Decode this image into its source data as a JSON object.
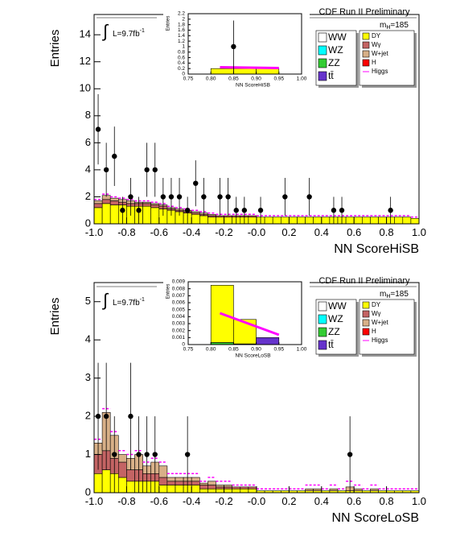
{
  "chart_data": [
    {
      "type": "stacked_histogram",
      "header": "CDF Run II Preliminary",
      "integral_symbol": "∫",
      "lumi": "L=9.7fb",
      "lumi_exponent": "-1",
      "mass_label": {
        "m": "m",
        "sub": "H",
        "rest": "=185"
      },
      "y_label": "Entries",
      "x_label": "NN ScoreHiSB",
      "xlim": [
        -1,
        1
      ],
      "ylim": [
        0,
        15.5
      ],
      "xticks": [
        {
          "value": -1,
          "label": "-1.0"
        },
        -0.8,
        -0.6,
        -0.4,
        -0.2,
        {
          "value": 0,
          "label": "-0.0"
        },
        0.2,
        0.4,
        0.6,
        0.8,
        {
          "value": 1,
          "label": "1.0"
        }
      ],
      "yticks": [
        0,
        2,
        4,
        6,
        8,
        10,
        12,
        14
      ],
      "bins": [
        -1,
        -0.95,
        -0.9,
        -0.85,
        -0.8,
        -0.75,
        -0.7,
        -0.65,
        -0.6,
        -0.55,
        -0.5,
        -0.45,
        -0.4,
        -0.35,
        -0.3,
        -0.25,
        -0.2,
        -0.15,
        -0.1,
        -0.05,
        0,
        0.05,
        0.1,
        0.15,
        0.2,
        0.25,
        0.3,
        0.35,
        0.4,
        0.45,
        0.5,
        0.55,
        0.6,
        0.65,
        0.7,
        0.75,
        0.8,
        0.85,
        0.9,
        0.95,
        1
      ],
      "series": [
        {
          "name": "DY",
          "color": "#ffff00",
          "values": [
            1.2,
            1.5,
            1.4,
            1.4,
            1.3,
            1.3,
            1.3,
            1.2,
            1.1,
            1.0,
            0.9,
            0.8,
            0.7,
            0.6,
            0.5,
            0.5,
            0.5,
            0.5,
            0.5,
            0.5,
            0.5,
            0.5,
            0.5,
            0.5,
            0.5,
            0.5,
            0.5,
            0.5,
            0.5,
            0.5,
            0.5,
            0.5,
            0.5,
            0.5,
            0.5,
            0.5,
            0.5,
            0.5,
            0.5,
            0.4
          ]
        },
        {
          "name": "Wγ",
          "color": "#c46464",
          "values": [
            0.3,
            0.3,
            0.3,
            0.2,
            0.2,
            0.2,
            0.2,
            0.2,
            0.2,
            0.1,
            0.1,
            0.1,
            0.1,
            0.1,
            0.1,
            0.1,
            0.1,
            0.1,
            0.1,
            0.1,
            0,
            0,
            0,
            0,
            0,
            0,
            0,
            0,
            0,
            0,
            0,
            0,
            0,
            0,
            0,
            0,
            0,
            0,
            0,
            0
          ]
        },
        {
          "name": "W+jet",
          "color": "#d8b088",
          "values": [
            0.2,
            0.3,
            0.2,
            0.2,
            0.2,
            0.1,
            0.1,
            0.1,
            0.1,
            0.1,
            0.1,
            0.1,
            0.1,
            0.1,
            0.1,
            0,
            0,
            0,
            0,
            0,
            0,
            0,
            0,
            0,
            0,
            0,
            0,
            0,
            0,
            0,
            0,
            0,
            0,
            0,
            0,
            0,
            0,
            0,
            0,
            0
          ]
        }
      ],
      "higgs": {
        "name": "Higgs",
        "color": "#ff00ff",
        "values": [
          1.8,
          2.2,
          2.0,
          1.9,
          1.8,
          1.7,
          1.7,
          1.6,
          1.5,
          1.3,
          1.2,
          1.1,
          1.0,
          0.9,
          0.8,
          0.7,
          0.7,
          0.7,
          0.7,
          0.7,
          0.6,
          0.6,
          0.6,
          0.6,
          0.6,
          0.6,
          0.6,
          0.6,
          0.6,
          0.6,
          0.6,
          0.6,
          0.6,
          0.6,
          0.6,
          0.6,
          0.6,
          0.6,
          0.6,
          0.5
        ]
      },
      "legend_extra": [
        {
          "label": "WW",
          "color": "#ffffff"
        },
        {
          "label": "WZ",
          "color": "#00ffff"
        },
        {
          "label": "ZZ",
          "color": "#33cc33"
        },
        {
          "label": "tt̄",
          "color": "#6633cc"
        },
        {
          "label": "H",
          "color": "#ff0000"
        }
      ],
      "points": {
        "x": [
          -0.975,
          -0.925,
          -0.875,
          -0.825,
          -0.775,
          -0.725,
          -0.675,
          -0.625,
          -0.575,
          -0.525,
          -0.475,
          -0.425,
          -0.375,
          -0.325,
          -0.225,
          -0.175,
          -0.125,
          -0.075,
          0.025,
          0.175,
          0.325,
          0.475,
          0.525,
          0.825
        ],
        "values": [
          7,
          4,
          5,
          1,
          2,
          1,
          4,
          4,
          2,
          2,
          2,
          1,
          3,
          2,
          2,
          2,
          1,
          1,
          1,
          2,
          2,
          1,
          1,
          1
        ],
        "errors": [
          2.6,
          2,
          2.2,
          1,
          1.4,
          1,
          2,
          2,
          1.4,
          1.4,
          1.4,
          1,
          1.7,
          1.4,
          1.4,
          1.4,
          1,
          1,
          1,
          1.4,
          1.4,
          1,
          1,
          1
        ]
      },
      "inset": {
        "x_label": "NN ScoreHiSB",
        "y_label": "Entries",
        "xlim": [
          0.75,
          1
        ],
        "ylim": [
          0,
          2.2
        ],
        "xticks": [
          0.75,
          {
            "value": 0.8,
            "label": "0.80"
          },
          0.85,
          {
            "value": 0.9,
            "label": "0.90"
          },
          0.95,
          {
            "value": 1,
            "label": "1.00"
          }
        ],
        "yticks": [
          0,
          0.2,
          0.4,
          0.6,
          0.8,
          1,
          1.2,
          1.4,
          1.6,
          1.8,
          2,
          2.2
        ],
        "bins": [
          0.75,
          0.8,
          0.85,
          0.9,
          0.95,
          1
        ],
        "series": [
          {
            "name": "DY",
            "color": "#ffff00",
            "values": [
              0,
              0.2,
              0.2,
              0.2,
              0
            ]
          }
        ],
        "higgs": {
          "color": "#ff00ff",
          "x": [
            0.82,
            0.95
          ],
          "values": [
            0.25,
            0.22
          ]
        },
        "points": {
          "x": [
            0.85
          ],
          "values": [
            1
          ],
          "errors": [
            0.95
          ]
        }
      }
    },
    {
      "type": "stacked_histogram",
      "header": "CDF Run II Preliminary",
      "integral_symbol": "∫",
      "lumi": "L=9.7fb",
      "lumi_exponent": "-1",
      "mass_label": {
        "m": "m",
        "sub": "H",
        "rest": "=185"
      },
      "y_label": "Entries",
      "x_label": "NN ScoreLoSB",
      "xlim": [
        -1,
        1
      ],
      "ylim": [
        0,
        5.5
      ],
      "xticks": [
        {
          "value": -1,
          "label": "-1.0"
        },
        -0.8,
        -0.6,
        -0.4,
        -0.2,
        {
          "value": 0,
          "label": "-0.0"
        },
        0.2,
        0.4,
        0.6,
        0.8,
        {
          "value": 1,
          "label": "1.0"
        }
      ],
      "yticks": [
        0,
        1,
        2,
        3,
        4,
        5
      ],
      "bins": [
        -1,
        -0.95,
        -0.9,
        -0.85,
        -0.8,
        -0.75,
        -0.7,
        -0.65,
        -0.6,
        -0.55,
        -0.5,
        -0.45,
        -0.4,
        -0.35,
        -0.3,
        -0.25,
        -0.2,
        -0.15,
        -0.1,
        -0.05,
        0,
        0.05,
        0.1,
        0.15,
        0.2,
        0.25,
        0.3,
        0.35,
        0.4,
        0.45,
        0.5,
        0.55,
        0.6,
        0.65,
        0.7,
        0.75,
        0.8,
        0.85,
        0.9,
        0.95,
        1
      ],
      "series": [
        {
          "name": "DY",
          "color": "#ffff00",
          "values": [
            0.5,
            0.6,
            0.5,
            0.4,
            0.3,
            0.3,
            0.3,
            0.3,
            0.2,
            0.2,
            0.2,
            0.2,
            0.2,
            0.1,
            0.1,
            0.1,
            0.1,
            0.1,
            0.1,
            0.1,
            0.05,
            0.05,
            0.05,
            0.05,
            0.05,
            0.05,
            0.05,
            0.05,
            0.05,
            0.05,
            0.05,
            0.05,
            0.05,
            0.05,
            0.05,
            0.05,
            0.05,
            0.05,
            0.05,
            0.05
          ]
        },
        {
          "name": "Wγ",
          "color": "#c46464",
          "values": [
            0.5,
            0.5,
            0.4,
            0.4,
            0.3,
            0.3,
            0.2,
            0.2,
            0.2,
            0.1,
            0.1,
            0.1,
            0.1,
            0.1,
            0.1,
            0.05,
            0.05,
            0.05,
            0.05,
            0.05,
            0,
            0,
            0,
            0,
            0,
            0,
            0,
            0,
            0,
            0,
            0,
            0,
            0,
            0,
            0,
            0,
            0,
            0,
            0,
            0
          ]
        },
        {
          "name": "W+jet",
          "color": "#d8b088",
          "values": [
            0.3,
            1.0,
            0.6,
            0.2,
            0.3,
            0.4,
            0.2,
            0.3,
            0.3,
            0.1,
            0.1,
            0.1,
            0.1,
            0.05,
            0.1,
            0.05,
            0.05,
            0,
            0,
            0,
            0,
            0,
            0,
            0,
            0,
            0,
            0.05,
            0.05,
            0,
            0.05,
            0,
            0.1,
            0.05,
            0,
            0.05,
            0,
            0,
            0,
            0,
            0
          ]
        }
      ],
      "higgs": {
        "name": "Higgs",
        "color": "#ff00ff",
        "values": [
          1.4,
          2.2,
          1.6,
          1.1,
          1.0,
          1.1,
          0.8,
          0.9,
          0.8,
          0.5,
          0.5,
          0.5,
          0.5,
          0.3,
          0.4,
          0.3,
          0.3,
          0.2,
          0.2,
          0.2,
          0.1,
          0.1,
          0.1,
          0.1,
          0.1,
          0.1,
          0.2,
          0.2,
          0.1,
          0.2,
          0.1,
          0.3,
          0.2,
          0.1,
          0.2,
          0.1,
          0.1,
          0.1,
          0.1,
          0.1
        ]
      },
      "legend_extra": [
        {
          "label": "WW",
          "color": "#ffffff"
        },
        {
          "label": "WZ",
          "color": "#00ffff"
        },
        {
          "label": "ZZ",
          "color": "#33cc33"
        },
        {
          "label": "tt̄",
          "color": "#6633cc"
        },
        {
          "label": "H",
          "color": "#ff0000"
        }
      ],
      "points": {
        "x": [
          -0.975,
          -0.925,
          -0.875,
          -0.775,
          -0.725,
          -0.675,
          -0.625,
          -0.425,
          0.575
        ],
        "values": [
          2,
          2,
          1,
          2,
          1,
          1,
          1,
          1,
          1
        ],
        "errors": [
          1.4,
          1.4,
          1,
          1.4,
          1,
          1,
          1,
          1,
          1
        ]
      },
      "inset": {
        "x_label": "NN ScoreLoSB",
        "y_label": "Entries",
        "xlim": [
          0.75,
          1
        ],
        "ylim": [
          0,
          0.009
        ],
        "xticks": [
          0.75,
          {
            "value": 0.8,
            "label": "0.80"
          },
          0.85,
          {
            "value": 0.9,
            "label": "0.90"
          },
          0.95,
          {
            "value": 1,
            "label": "1.00"
          }
        ],
        "yticks": [
          0,
          0.001,
          0.002,
          0.003,
          0.004,
          0.005,
          0.006,
          0.007,
          0.008,
          0.009
        ],
        "bins": [
          0.75,
          0.8,
          0.85,
          0.9,
          0.95,
          1
        ],
        "series": [
          {
            "name": "ZZ",
            "color": "#33cc33",
            "values": [
              0,
              0.0003,
              0.0001,
              0,
              0
            ]
          },
          {
            "name": "DY",
            "color": "#ffff00",
            "values": [
              0,
              0.0082,
              0.0035,
              0,
              0
            ]
          },
          {
            "name": "tt̄",
            "color": "#6633cc",
            "values": [
              0,
              0,
              0,
              0.001,
              0
            ]
          }
        ],
        "higgs": {
          "color": "#ff00ff",
          "x": [
            0.82,
            0.95
          ],
          "values": [
            0.0045,
            0.0014
          ]
        },
        "points": {
          "x": [],
          "values": [],
          "errors": []
        }
      }
    }
  ]
}
